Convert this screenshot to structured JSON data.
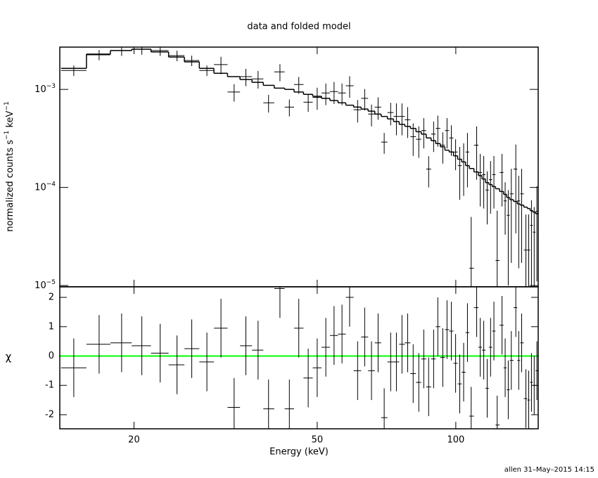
{
  "chart_data": {
    "type": "spectrum",
    "title": "data and folded model",
    "x": [
      14.8,
      16.8,
      18.8,
      20.8,
      22.8,
      24.8,
      26.7,
      28.8,
      30.9,
      33.0,
      35.0,
      37.2,
      39.2,
      41.5,
      43.5,
      45.6,
      47.8,
      50.0,
      52.2,
      54.4,
      56.6,
      58.8,
      61.2,
      63.4,
      65.6,
      67.8,
      69.9,
      72.2,
      74.3,
      76.4,
      78.6,
      80.8,
      83.1,
      85.2,
      87.3,
      89.5,
      91.4,
      93.7,
      95.7,
      97.8,
      99.9,
      102,
      104,
      106,
      108,
      111,
      113,
      115,
      117,
      119,
      121,
      123,
      126,
      128,
      130,
      132,
      135,
      137,
      139,
      142,
      144,
      146,
      148,
      150
    ],
    "log_x": true,
    "xlim": [
      13.8,
      151
    ],
    "xticks": [
      20,
      50,
      100
    ],
    "xlabel": "Energy (keV)",
    "data_values": [
      0.00156,
      0.00225,
      0.00249,
      0.00257,
      0.00249,
      0.00221,
      0.00197,
      0.00156,
      0.00179,
      0.00094,
      0.00135,
      0.00128,
      0.00073,
      0.00151,
      0.00066,
      0.00112,
      0.00074,
      0.00083,
      0.00092,
      0.00095,
      0.00092,
      0.00109,
      0.00062,
      0.00081,
      0.00056,
      0.00066,
      0.00029,
      0.00058,
      0.00053,
      0.00053,
      0.00049,
      0.00033,
      0.00031,
      0.00038,
      0.000154,
      0.00035,
      0.0004,
      0.00027,
      0.00038,
      0.00032,
      0.00023,
      0.000167,
      0.000182,
      0.00023,
      1.5e-05,
      0.00027,
      0.000142,
      0.000135,
      9.4e-05,
      0.00012,
      0.000135,
      1.8e-05,
      0.000142,
      7.3e-05,
      5.2e-05,
      8.6e-05,
      0.000154,
      7.3e-05,
      8.6e-05,
      2.3e-05,
      2.3e-05,
      4.1e-05,
      3.5e-05,
      5.7e-05
    ],
    "data_errors": [
      0.00019,
      0.00027,
      0.0003,
      0.00031,
      0.0003,
      0.00027,
      0.00024,
      0.00019,
      0.00036,
      0.00019,
      0.00027,
      0.00026,
      0.00015,
      0.0003,
      0.00013,
      0.00022,
      0.00015,
      0.00021,
      0.00023,
      0.00024,
      0.00023,
      0.00027,
      0.00016,
      0.0002,
      0.00014,
      0.00017,
      7e-05,
      0.00015,
      0.00019,
      0.00019,
      0.00017,
      0.00012,
      0.00011,
      0.00013,
      5.4e-05,
      0.00012,
      0.00014,
      9.5e-05,
      0.00013,
      0.00011,
      8e-05,
      9.2e-05,
      0.0001,
      0.00013,
      3.5e-05,
      0.00015,
      7.8e-05,
      7.4e-05,
      5.2e-05,
      6.6e-05,
      7.4e-05,
      4e-05,
      7.8e-05,
      4e-05,
      4.2e-05,
      6.9e-05,
      0.00012,
      5.8e-05,
      6.9e-05,
      3e-05,
      3e-05,
      3.3e-05,
      2.8e-05,
      4.6e-05
    ],
    "model_values": [
      0.00164,
      0.00229,
      0.00249,
      0.00257,
      0.00241,
      0.00214,
      0.00191,
      0.00164,
      0.00146,
      0.00135,
      0.00126,
      0.00118,
      0.0011,
      0.00103,
      0.001,
      0.00094,
      0.00089,
      0.00085,
      0.00081,
      0.00077,
      0.00073,
      0.00069,
      0.00066,
      0.00063,
      0.0006,
      0.00056,
      0.00053,
      0.0005,
      0.00047,
      0.00044,
      0.00042,
      0.0004,
      0.00037,
      0.00035,
      0.00032,
      0.0003,
      0.00028,
      0.00026,
      0.00024,
      0.00023,
      0.00021,
      0.000194,
      0.000182,
      0.000167,
      0.000156,
      0.000144,
      0.000132,
      0.000122,
      0.000112,
      0.000107,
      0.000102,
      9.7e-05,
      9.1e-05,
      8.5e-05,
      7.9e-05,
      7.5e-05,
      7.2e-05,
      6.8e-05,
      6.6e-05,
      6.3e-05,
      6.1e-05,
      5.8e-05,
      5.6e-05,
      5.4e-05
    ],
    "color": "#000000",
    "log_y": true,
    "ylim": [
      9.7e-06,
      0.0027
    ],
    "yticks": [
      {
        "value": 0.001,
        "label": "10",
        "exponent": "−3"
      },
      {
        "value": 0.0001,
        "label": "10",
        "exponent": "−4"
      },
      {
        "value": 1e-05,
        "label": "10",
        "exponent": "−5"
      }
    ],
    "ylabel": [
      "normalized counts s",
      "−1",
      "  keV",
      "−1"
    ],
    "residuals": {
      "ylabel": "χ",
      "values": [
        -0.4,
        0.4,
        0.45,
        0.35,
        0.1,
        -0.3,
        0.25,
        -0.2,
        0.95,
        -1.75,
        0.35,
        0.2,
        -1.8,
        2.3,
        -1.8,
        0.95,
        -0.75,
        -0.4,
        0.3,
        0.7,
        0.75,
        2.0,
        -0.5,
        0.65,
        -0.5,
        0.45,
        -2.1,
        -0.2,
        -0.2,
        0.4,
        0.45,
        -0.6,
        -0.9,
        -0.1,
        -1.05,
        -0.1,
        1.0,
        -0.05,
        0.9,
        0.85,
        -0.25,
        -0.95,
        -0.55,
        0.8,
        -2.05,
        1.65,
        0.3,
        0.2,
        -1.1,
        0.3,
        0.85,
        -2.35,
        1.05,
        -0.4,
        -1.15,
        -0.15,
        1.65,
        -0.15,
        0.45,
        -1.45,
        -1.5,
        -0.9,
        -1.0,
        -0.5
      ],
      "yerr": 1,
      "ylim": [
        -2.48,
        2.36
      ],
      "yticks": [
        -2,
        -1,
        0,
        1,
        2
      ],
      "zero_line": {
        "value": 0,
        "color": "#00ff00"
      }
    }
  },
  "footer": "allen 31–May–2015 14:15"
}
